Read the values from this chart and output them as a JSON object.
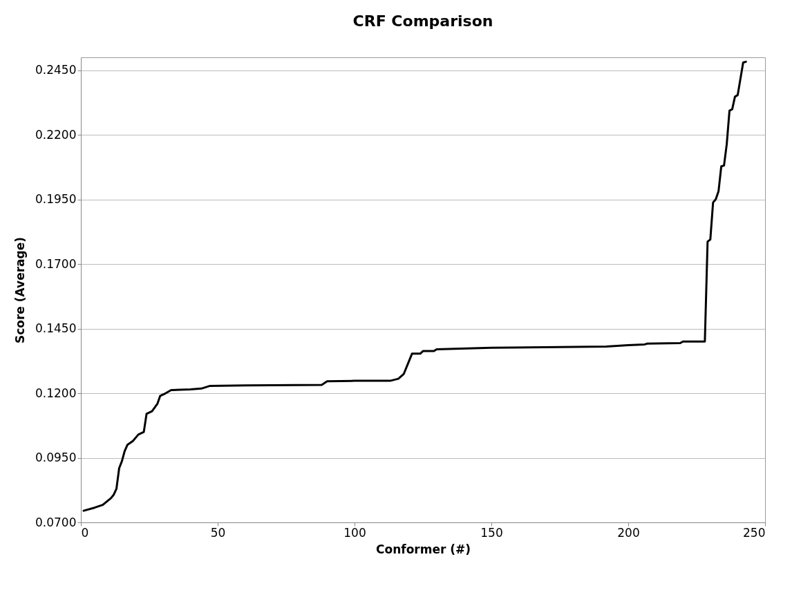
{
  "chart_data": {
    "type": "line",
    "title": "CRF Comparison",
    "xlabel": "Conformer (#)",
    "ylabel": "Score (Average)",
    "x": [
      1,
      5,
      8,
      11,
      12,
      13,
      14,
      15,
      16,
      17,
      19,
      21,
      23,
      24,
      26,
      28,
      29,
      31,
      33,
      40,
      44,
      47,
      60,
      88,
      90,
      100,
      113,
      116,
      118,
      120,
      121,
      124,
      125,
      129,
      130,
      150,
      175,
      192,
      200,
      206,
      207,
      219,
      220,
      228,
      229,
      230,
      231,
      232,
      233,
      234,
      235,
      236,
      237,
      238,
      239,
      240,
      242,
      243
    ],
    "series": [
      {
        "color": "#000000",
        "values": [
          0.0745,
          0.0757,
          0.0768,
          0.0794,
          0.0807,
          0.083,
          0.091,
          0.0937,
          0.0976,
          0.1,
          0.1015,
          0.104,
          0.105,
          0.112,
          0.113,
          0.116,
          0.119,
          0.12,
          0.1212,
          0.1215,
          0.1218,
          0.1228,
          0.123,
          0.1232,
          0.1246,
          0.1248,
          0.1248,
          0.1256,
          0.1275,
          0.1327,
          0.1353,
          0.1353,
          0.1363,
          0.1363,
          0.137,
          0.1376,
          0.1379,
          0.1381,
          0.1386,
          0.1389,
          0.1392,
          0.1394,
          0.14,
          0.14,
          0.1787,
          0.1795,
          0.1938,
          0.1951,
          0.1982,
          0.2078,
          0.2081,
          0.2164,
          0.2294,
          0.2299,
          0.2348,
          0.2354,
          0.248,
          0.2483
        ]
      }
    ],
    "xlim": [
      0,
      250
    ],
    "xticks": [
      0,
      50,
      100,
      150,
      200,
      250
    ],
    "ylim": [
      0.07,
      0.25
    ],
    "yticks": [
      {
        "value": 0.07,
        "label": "0.0700"
      },
      {
        "value": 0.095,
        "label": "0.0950"
      },
      {
        "value": 0.12,
        "label": "0.1200"
      },
      {
        "value": 0.145,
        "label": "0.1450"
      },
      {
        "value": 0.17,
        "label": "0.1700"
      },
      {
        "value": 0.195,
        "label": "0.1950"
      },
      {
        "value": 0.22,
        "label": "0.2200"
      },
      {
        "value": 0.245,
        "label": "0.2450"
      }
    ],
    "grid": "y",
    "marker": "none",
    "line_style": "solid"
  }
}
